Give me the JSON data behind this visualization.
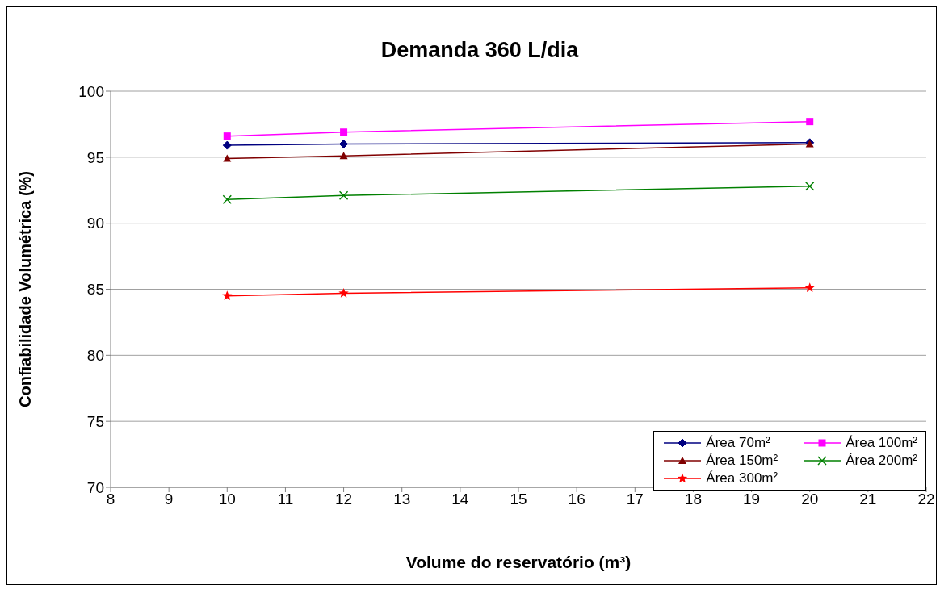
{
  "chart_data": {
    "type": "line",
    "title": "Demanda 360 L/dia",
    "xlabel": "Volume do reservatório (m³)",
    "ylabel": "Confiabilidade Volumétrica (%)",
    "x": [
      10,
      12,
      20
    ],
    "series": [
      {
        "name": "Área 70m²",
        "color": "#000080",
        "marker": "diamond",
        "values": [
          95.9,
          96.0,
          96.1
        ]
      },
      {
        "name": "Área 100m²",
        "color": "#ff00ff",
        "marker": "square",
        "values": [
          96.6,
          96.9,
          97.7
        ]
      },
      {
        "name": "Área 150m²",
        "color": "#800000",
        "marker": "triangle",
        "values": [
          94.9,
          95.1,
          96.0
        ]
      },
      {
        "name": "Área 200m²",
        "color": "#008000",
        "marker": "cross",
        "values": [
          91.8,
          92.1,
          92.8
        ]
      },
      {
        "name": "Área 300m²",
        "color": "#ff0000",
        "marker": "star",
        "values": [
          84.5,
          84.7,
          85.1
        ]
      }
    ],
    "xlim": [
      8,
      22
    ],
    "xticks": [
      8,
      9,
      10,
      11,
      12,
      13,
      14,
      15,
      16,
      17,
      18,
      19,
      20,
      21,
      22
    ],
    "ylim": [
      70,
      100
    ],
    "yticks": [
      70,
      75,
      80,
      85,
      90,
      95,
      100
    ],
    "grid": "y",
    "legend": "bottom right"
  }
}
